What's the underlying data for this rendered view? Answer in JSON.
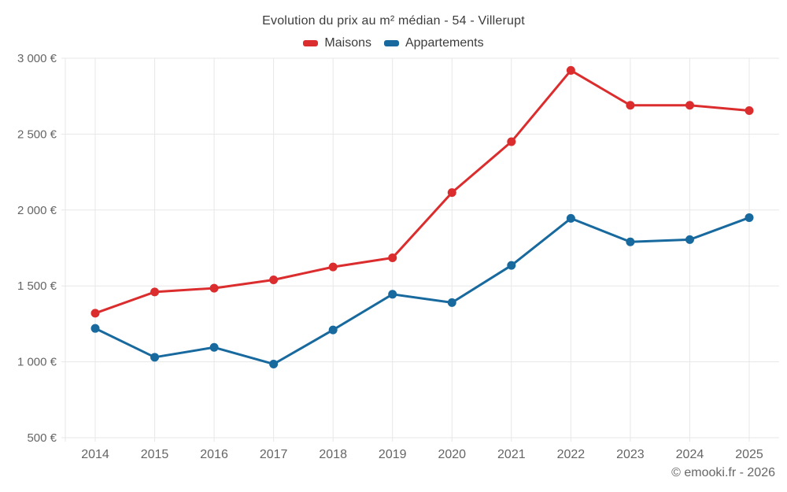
{
  "chart_data": {
    "type": "line",
    "title": "Evolution du prix au m² médian - 54 - Villerupt",
    "categories": [
      "2014",
      "2015",
      "2016",
      "2017",
      "2018",
      "2019",
      "2020",
      "2021",
      "2022",
      "2023",
      "2024",
      "2025"
    ],
    "series": [
      {
        "name": "Maisons",
        "color": "#db2d2e",
        "values": [
          1320,
          1460,
          1485,
          1540,
          1625,
          1685,
          2115,
          2450,
          2920,
          2690,
          2690,
          2655
        ]
      },
      {
        "name": "Appartements",
        "color": "#17699e",
        "values": [
          1220,
          1030,
          1095,
          985,
          1210,
          1445,
          1390,
          1635,
          1945,
          1790,
          1805,
          1950
        ]
      }
    ],
    "xlabel": "",
    "ylabel": "",
    "ylim": [
      500,
      3000
    ],
    "ytick_step": 500,
    "ytick_labels": [
      "500 €",
      "1 000 €",
      "1 500 €",
      "2 000 €",
      "2 500 €",
      "3 000 €"
    ],
    "grid": true,
    "legend_position": "top-center"
  },
  "footer": {
    "credit": "© emooki.fr - 2026"
  },
  "colors": {
    "maisons_red": "#db2d2e",
    "appartements_blue": "#17699e",
    "gridline": "#e7e7e7",
    "axis_text": "#656565",
    "title_text": "#3c3c3c",
    "footer_text": "#666666",
    "background": "#ffffff"
  }
}
